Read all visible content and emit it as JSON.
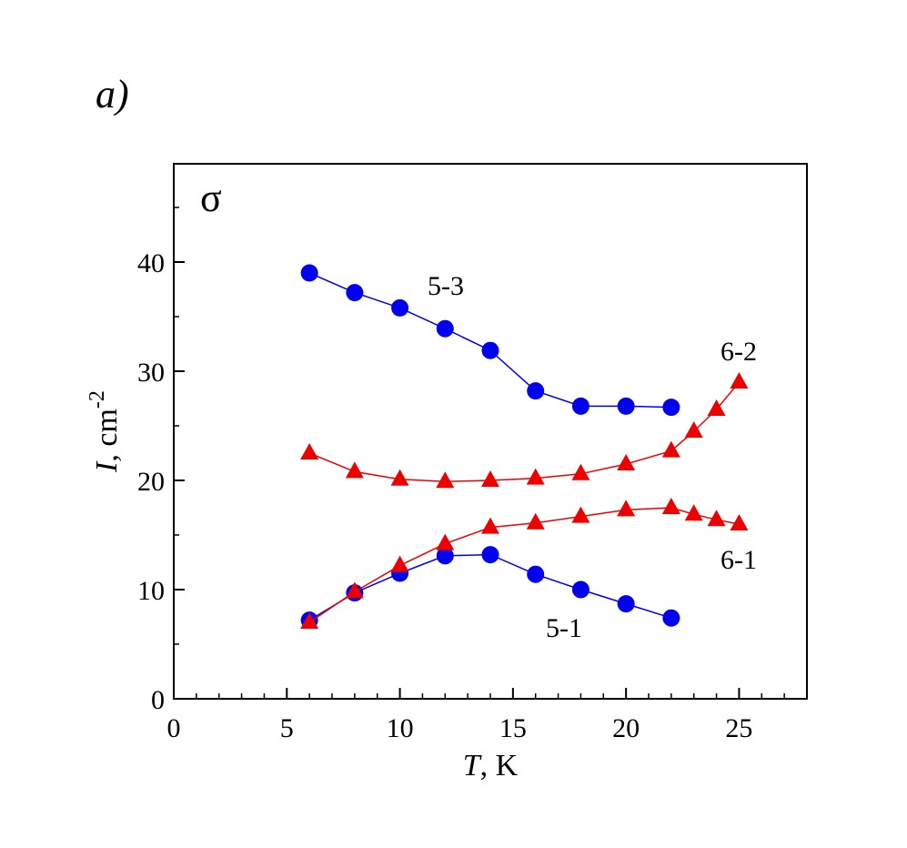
{
  "chart_data": {
    "type": "line",
    "panel_label": "a)",
    "polarization": "σ",
    "xlabel": {
      "italic": "T",
      "rest": ", K"
    },
    "ylabel": {
      "italic": "I",
      "rest": ", cm",
      "sup": "-2"
    },
    "xlim": [
      0,
      28
    ],
    "xticks": [
      0,
      5,
      10,
      15,
      20,
      25
    ],
    "xminorticks": [
      1,
      2,
      3,
      4,
      6,
      7,
      8,
      9,
      11,
      12,
      13,
      14,
      16,
      17,
      18,
      19,
      21,
      22,
      23,
      24,
      26,
      27
    ],
    "ylim": [
      0,
      49
    ],
    "yticks": [
      0,
      10,
      20,
      30,
      40
    ],
    "yminorticks": [
      5,
      15,
      25,
      35,
      45
    ],
    "series": [
      {
        "name": "5-3",
        "color": "#0000ee",
        "marker": "circle",
        "x": [
          6,
          8,
          10,
          12,
          14,
          16,
          18,
          20,
          22
        ],
        "values": [
          39.0,
          37.2,
          35.8,
          33.9,
          31.9,
          28.2,
          26.8,
          26.8,
          26.7
        ]
      },
      {
        "name": "5-1",
        "color": "#0000ee",
        "marker": "circle",
        "x": [
          6,
          8,
          10,
          12,
          14,
          16,
          18,
          20,
          22
        ],
        "values": [
          7.2,
          9.7,
          11.5,
          13.1,
          13.2,
          11.4,
          10.0,
          8.7,
          7.4
        ]
      },
      {
        "name": "6-2",
        "color": "#ee0000",
        "marker": "triangle",
        "x": [
          6,
          8,
          10,
          12,
          14,
          16,
          18,
          20,
          22,
          23,
          24,
          25
        ],
        "values": [
          22.5,
          20.8,
          20.1,
          19.9,
          20.0,
          20.2,
          20.6,
          21.5,
          22.7,
          24.5,
          26.5,
          29.0
        ]
      },
      {
        "name": "6-1",
        "color": "#ee0000",
        "marker": "triangle",
        "x": [
          6,
          8,
          10,
          12,
          14,
          16,
          18,
          20,
          22,
          23,
          24,
          25
        ],
        "values": [
          7.0,
          9.8,
          12.2,
          14.2,
          15.7,
          16.1,
          16.7,
          17.3,
          17.5,
          16.9,
          16.4,
          16.0
        ]
      }
    ]
  }
}
